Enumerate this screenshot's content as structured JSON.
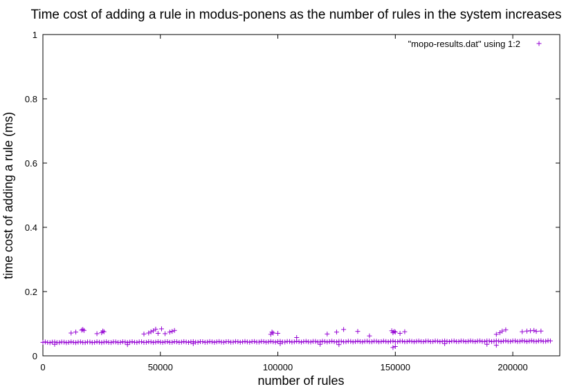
{
  "chart_data": {
    "type": "scatter",
    "title": "Time cost of adding a rule in modus-ponens as the number of rules in the system increases",
    "xlabel": "number of rules",
    "ylabel": "time cost of adding a rule (ms)",
    "xlim": [
      0,
      220000
    ],
    "ylim": [
      0,
      1
    ],
    "xticks": [
      0,
      50000,
      100000,
      150000,
      200000
    ],
    "xtick_labels": [
      "0",
      "50000",
      "100000",
      "150000",
      "200000"
    ],
    "yticks": [
      0,
      0.2,
      0.4,
      0.6,
      0.8,
      1
    ],
    "ytick_labels": [
      "0",
      "0.2",
      "0.4",
      "0.6",
      "0.8",
      "1"
    ],
    "grid": false,
    "legend_position": "top-right",
    "marker": "plus",
    "color": "#9400d3",
    "series": [
      {
        "name": "\"mopo-results.dat\" using 1:2",
        "baseline": {
          "x_start": 0,
          "x_end": 216000,
          "x_step": 1000,
          "y_start": 0.042,
          "y_end": 0.046
        },
        "outliers": [
          [
            12000,
            0.071
          ],
          [
            14000,
            0.074
          ],
          [
            16500,
            0.08
          ],
          [
            17000,
            0.082
          ],
          [
            17500,
            0.079
          ],
          [
            23000,
            0.069
          ],
          [
            25000,
            0.072
          ],
          [
            25500,
            0.077
          ],
          [
            26000,
            0.075
          ],
          [
            43000,
            0.068
          ],
          [
            45000,
            0.071
          ],
          [
            46000,
            0.075
          ],
          [
            47000,
            0.078
          ],
          [
            48000,
            0.083
          ],
          [
            49000,
            0.07
          ],
          [
            50500,
            0.084
          ],
          [
            52000,
            0.069
          ],
          [
            54000,
            0.074
          ],
          [
            55000,
            0.076
          ],
          [
            56000,
            0.079
          ],
          [
            97000,
            0.067
          ],
          [
            97500,
            0.074
          ],
          [
            98000,
            0.071
          ],
          [
            100000,
            0.07
          ],
          [
            108000,
            0.057
          ],
          [
            121000,
            0.068
          ],
          [
            125000,
            0.074
          ],
          [
            128000,
            0.082
          ],
          [
            134000,
            0.076
          ],
          [
            139000,
            0.062
          ],
          [
            148500,
            0.078
          ],
          [
            149000,
            0.072
          ],
          [
            149500,
            0.076
          ],
          [
            150000,
            0.074
          ],
          [
            152000,
            0.07
          ],
          [
            154000,
            0.075
          ],
          [
            193000,
            0.067
          ],
          [
            194500,
            0.072
          ],
          [
            195500,
            0.077
          ],
          [
            197000,
            0.081
          ],
          [
            204000,
            0.075
          ],
          [
            206000,
            0.077
          ],
          [
            207500,
            0.078
          ],
          [
            209000,
            0.079
          ],
          [
            210000,
            0.076
          ],
          [
            212000,
            0.077
          ],
          [
            5000,
            0.036
          ],
          [
            36000,
            0.035
          ],
          [
            64000,
            0.038
          ],
          [
            101000,
            0.038
          ],
          [
            118000,
            0.036
          ],
          [
            126000,
            0.035
          ],
          [
            149000,
            0.026
          ],
          [
            150000,
            0.029
          ],
          [
            171000,
            0.038
          ],
          [
            189000,
            0.036
          ],
          [
            193000,
            0.033
          ]
        ]
      }
    ]
  }
}
